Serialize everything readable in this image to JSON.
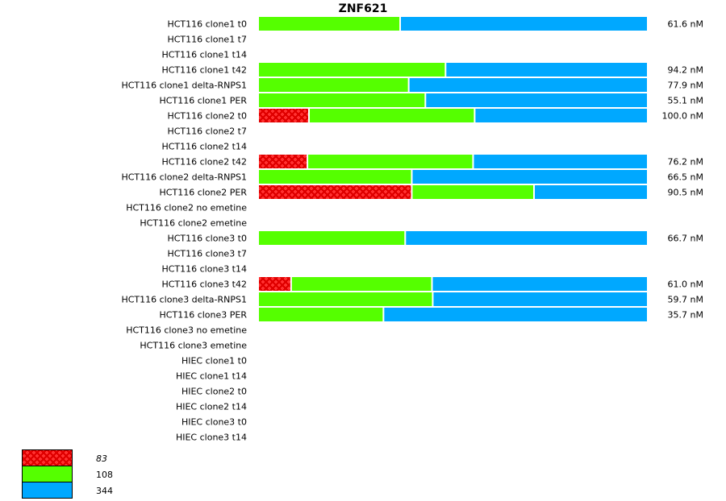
{
  "chart_data": {
    "type": "bar",
    "orientation": "horizontal",
    "stacked": true,
    "normalized": true,
    "title": "ZNF621",
    "xlabel": "",
    "ylabel": "",
    "value_unit": "percent of bar",
    "legend_position": "bottom-left",
    "legend": [
      {
        "key": "s83",
        "label": "83",
        "italic": true,
        "color": "#e80000",
        "pattern": "crosshatch-dots"
      },
      {
        "key": "s108",
        "label": "108",
        "italic": false,
        "color": "#55ff00",
        "pattern": "solid"
      },
      {
        "key": "s344",
        "label": "344",
        "italic": false,
        "color": "#00a8ff",
        "pattern": "solid"
      }
    ],
    "rows": [
      {
        "label": "HCT116 clone1 t0",
        "value_label": "61.6 nM",
        "segments": {
          "s83": 0,
          "s108": 36.6,
          "s344": 63.4
        }
      },
      {
        "label": "HCT116 clone1 t7",
        "value_label": "",
        "segments": null
      },
      {
        "label": "HCT116 clone1 t14",
        "value_label": "",
        "segments": null
      },
      {
        "label": "HCT116 clone1 t42",
        "value_label": "94.2 nM",
        "segments": {
          "s83": 0,
          "s108": 48.3,
          "s344": 51.7
        }
      },
      {
        "label": "HCT116 clone1 delta-RNPS1",
        "value_label": "77.9 nM",
        "segments": {
          "s83": 0,
          "s108": 38.8,
          "s344": 61.2
        }
      },
      {
        "label": "HCT116 clone1 PER",
        "value_label": "55.1 nM",
        "segments": {
          "s83": 0,
          "s108": 43.1,
          "s344": 56.9
        }
      },
      {
        "label": "HCT116 clone2 t0",
        "value_label": "100.0 nM",
        "segments": {
          "s83": 13.1,
          "s108": 42.7,
          "s344": 44.2
        }
      },
      {
        "label": "HCT116 clone2 t7",
        "value_label": "",
        "segments": null
      },
      {
        "label": "HCT116 clone2 t14",
        "value_label": "",
        "segments": null
      },
      {
        "label": "HCT116 clone2 t42",
        "value_label": "76.2 nM",
        "segments": {
          "s83": 12.7,
          "s108": 42.7,
          "s344": 44.6
        }
      },
      {
        "label": "HCT116 clone2 delta-RNPS1",
        "value_label": "66.5 nM",
        "segments": {
          "s83": 0,
          "s108": 39.6,
          "s344": 60.4
        }
      },
      {
        "label": "HCT116 clone2 PER",
        "value_label": "90.5 nM",
        "segments": {
          "s83": 39.6,
          "s108": 31.5,
          "s344": 28.9
        }
      },
      {
        "label": "HCT116 clone2 no emetine",
        "value_label": "",
        "segments": null
      },
      {
        "label": "HCT116 clone2 emetine",
        "value_label": "",
        "segments": null
      },
      {
        "label": "HCT116 clone3 t0",
        "value_label": "66.7 nM",
        "segments": {
          "s83": 0,
          "s108": 37.9,
          "s344": 62.1
        }
      },
      {
        "label": "HCT116 clone3 t7",
        "value_label": "",
        "segments": null
      },
      {
        "label": "HCT116 clone3 t14",
        "value_label": "",
        "segments": null
      },
      {
        "label": "HCT116 clone3 t42",
        "value_label": "61.0 nM",
        "segments": {
          "s83": 8.5,
          "s108": 36.3,
          "s344": 55.2
        }
      },
      {
        "label": "HCT116 clone3 delta-RNPS1",
        "value_label": "59.7 nM",
        "segments": {
          "s83": 0,
          "s108": 45.0,
          "s344": 55.0
        }
      },
      {
        "label": "HCT116 clone3 PER",
        "value_label": "35.7 nM",
        "segments": {
          "s83": 0,
          "s108": 32.3,
          "s344": 67.7
        }
      },
      {
        "label": "HCT116 clone3 no emetine",
        "value_label": "",
        "segments": null
      },
      {
        "label": "HCT116 clone3 emetine",
        "value_label": "",
        "segments": null
      },
      {
        "label": "HIEC clone1 t0",
        "value_label": "",
        "segments": null
      },
      {
        "label": "HIEC clone1 t14",
        "value_label": "",
        "segments": null
      },
      {
        "label": "HIEC clone2 t0",
        "value_label": "",
        "segments": null
      },
      {
        "label": "HIEC clone2 t14",
        "value_label": "",
        "segments": null
      },
      {
        "label": "HIEC clone3 t0",
        "value_label": "",
        "segments": null
      },
      {
        "label": "HIEC clone3 t14",
        "value_label": "",
        "segments": null
      }
    ]
  }
}
